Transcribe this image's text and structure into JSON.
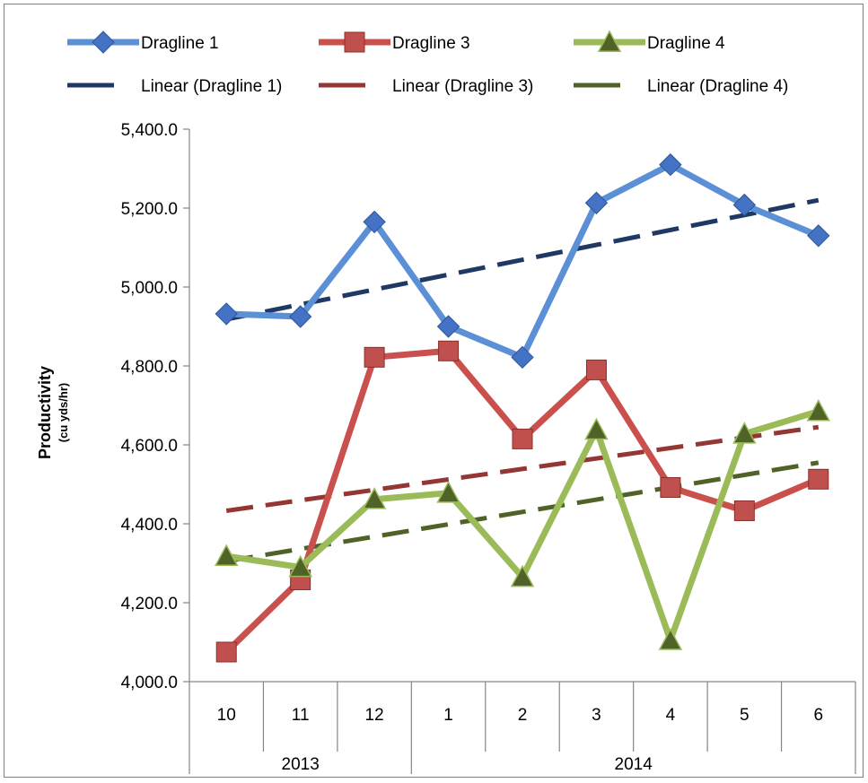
{
  "chart_data": {
    "type": "line",
    "title": "",
    "ylabel": "Productivity",
    "ylabel_sub": "(cu yds/hr)",
    "ylim": [
      4000,
      5400
    ],
    "yticks": [
      4000,
      4200,
      4400,
      4600,
      4800,
      5000,
      5200,
      5400
    ],
    "ytick_labels": [
      "4,000.0",
      "4,200.0",
      "4,400.0",
      "4,600.0",
      "4,800.0",
      "5,000.0",
      "5,200.0",
      "5,400.0"
    ],
    "categories": [
      "10",
      "11",
      "12",
      "1",
      "2",
      "3",
      "4",
      "5",
      "6"
    ],
    "year_groups": [
      {
        "label": "2013",
        "span": 3
      },
      {
        "label": "2014",
        "span": 6
      }
    ],
    "legend_position": "top",
    "series": [
      {
        "name": "Dragline 1",
        "color": "#5b8fd6",
        "marker": "diamond",
        "markerColor": "#4472c4",
        "values": [
          4932,
          4925,
          5165,
          4900,
          4822,
          5213,
          5310,
          5208,
          5130
        ]
      },
      {
        "name": "Dragline 3",
        "color": "#c9504d",
        "marker": "square",
        "markerColor": "#c0504d",
        "values": [
          4075,
          4258,
          4822,
          4838,
          4615,
          4790,
          4492,
          4433,
          4513
        ]
      },
      {
        "name": "Dragline 4",
        "color": "#9bbb59",
        "marker": "triangle",
        "markerColor": "#4f6228",
        "values": [
          4318,
          4290,
          4462,
          4478,
          4265,
          4638,
          4105,
          4628,
          4685
        ]
      }
    ],
    "trendlines": [
      {
        "name": "Linear (Dragline 1)",
        "color": "#1f3864",
        "start": 4918,
        "end": 5220
      },
      {
        "name": "Linear (Dragline 3)",
        "color": "#943634",
        "start": 4433,
        "end": 4645
      },
      {
        "name": "Linear (Dragline 4)",
        "color": "#4f6228",
        "start": 4305,
        "end": 4555
      }
    ]
  }
}
